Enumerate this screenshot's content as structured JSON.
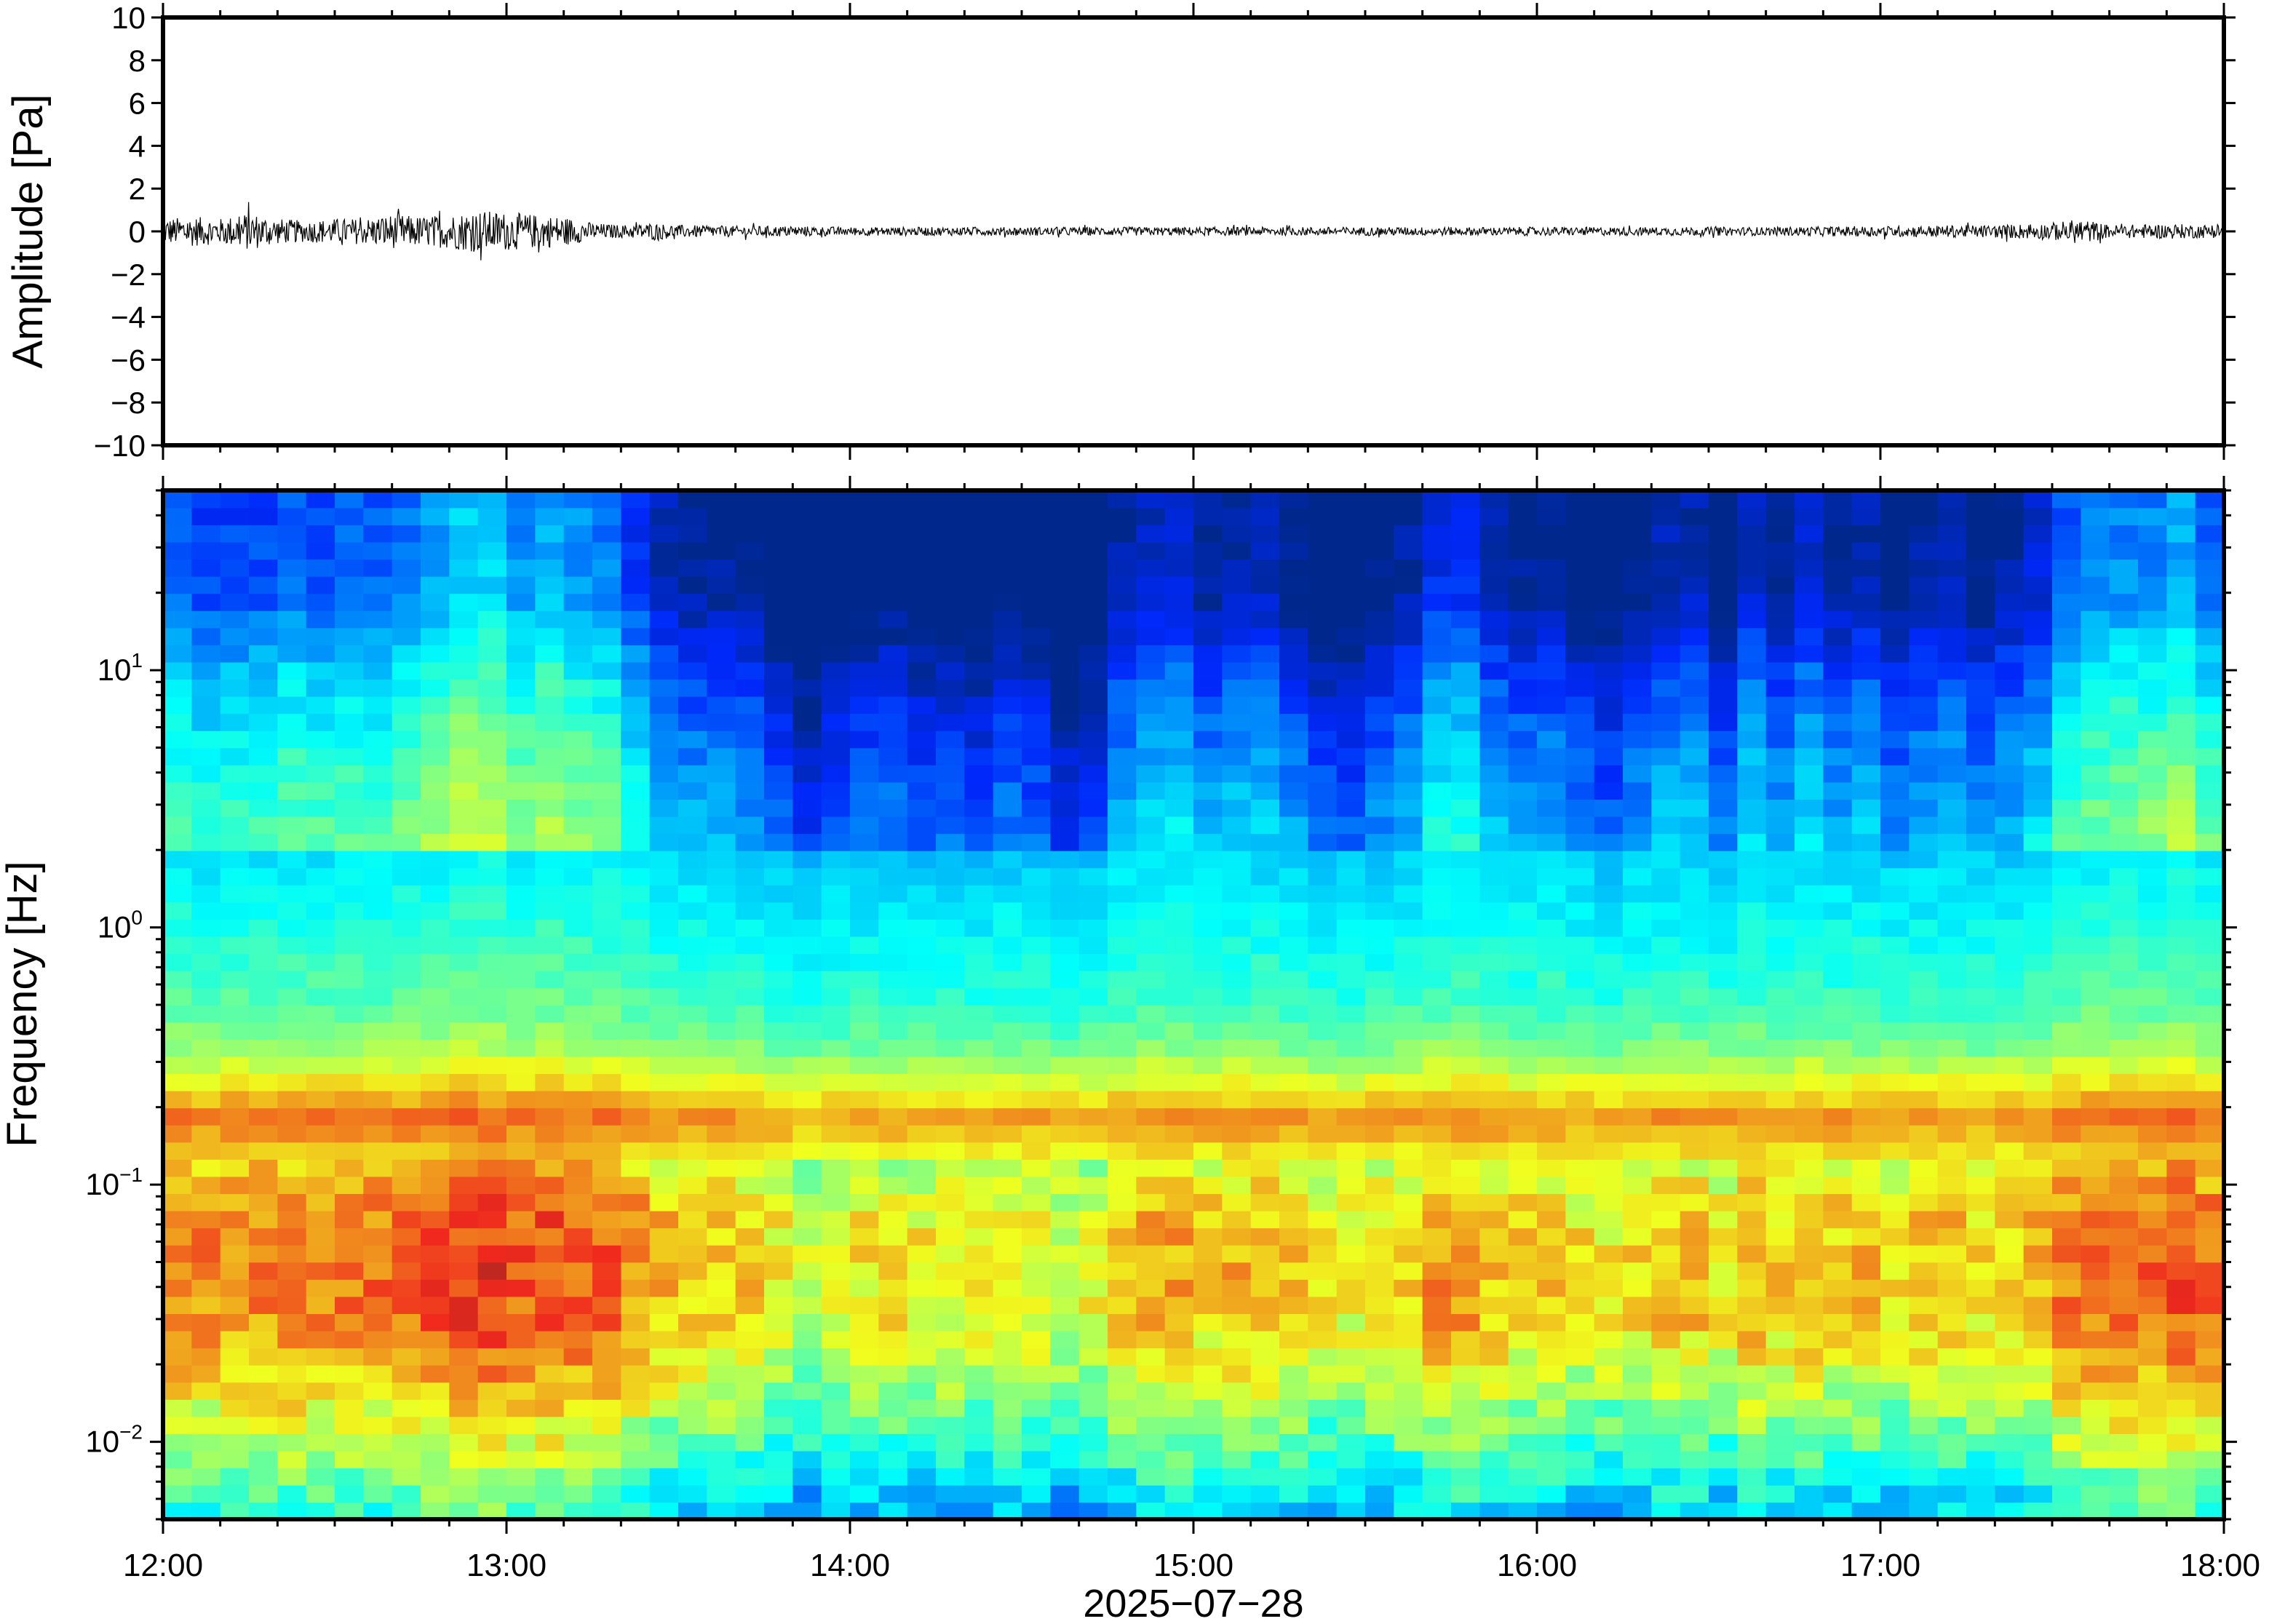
{
  "chart_data": [
    {
      "type": "line",
      "title": "",
      "xlabel": "",
      "ylabel": "Amplitude [Pa]",
      "ylim": [
        -10,
        10
      ],
      "yticks": [
        -10,
        -8,
        -6,
        -4,
        -2,
        0,
        2,
        4,
        6,
        8,
        10
      ],
      "ytick_labels": [
        "−10",
        "−8",
        "−6",
        "−4",
        "−2",
        "0",
        "2",
        "4",
        "6",
        "8",
        "10"
      ],
      "xlim": [
        "2025-07-28 12:00",
        "2025-07-28 18:00"
      ],
      "grid": false,
      "line_color": "#000000",
      "series": [
        {
          "name": "",
          "x": [
            "12:00",
            "12:05",
            "12:10",
            "12:15",
            "12:20",
            "12:25",
            "12:30",
            "12:35",
            "12:40",
            "12:45",
            "12:50",
            "12:55",
            "13:00",
            "13:05",
            "13:10",
            "13:15",
            "13:20",
            "13:25",
            "13:30",
            "13:40",
            "13:50",
            "14:00",
            "14:20",
            "14:40",
            "15:00",
            "15:20",
            "15:40",
            "16:00",
            "16:20",
            "16:40",
            "17:00",
            "17:20",
            "17:30",
            "17:35",
            "17:40",
            "17:50",
            "18:00"
          ],
          "envelope": [
            0.6,
            0.7,
            0.6,
            0.9,
            0.6,
            0.5,
            0.6,
            0.6,
            0.8,
            0.7,
            0.8,
            1.0,
            0.9,
            0.8,
            0.7,
            0.4,
            0.3,
            0.4,
            0.3,
            0.25,
            0.25,
            0.2,
            0.2,
            0.2,
            0.2,
            0.2,
            0.2,
            0.2,
            0.2,
            0.2,
            0.25,
            0.3,
            0.4,
            0.6,
            0.3,
            0.35,
            0.3
          ]
        }
      ]
    },
    {
      "type": "heatmap",
      "title": "",
      "xlabel": "2025−07−28",
      "ylabel": "Frequency [Hz]",
      "y_scale": "log",
      "ylim": [
        0.005,
        50
      ],
      "ytick_values": [
        0.01,
        0.1,
        1,
        10
      ],
      "ytick_mantissa": [
        "10",
        "10",
        "10",
        "10"
      ],
      "ytick_exponents": [
        "−2",
        "−1",
        "0",
        "1"
      ],
      "xlim": [
        "2025-07-28 12:00",
        "2025-07-28 18:00"
      ],
      "xtick_labels": [
        "12:00",
        "13:00",
        "14:00",
        "15:00",
        "16:00",
        "17:00",
        "18:00"
      ],
      "colormap": "jet",
      "grid": false,
      "num_time_bins": 72,
      "num_freq_bins": 60,
      "profile_power": {
        "freqs": [
          0.005,
          0.007,
          0.01,
          0.015,
          0.02,
          0.03,
          0.05,
          0.08,
          0.12,
          0.18,
          0.25,
          0.35,
          0.5,
          1.0,
          2.0,
          5.0,
          10,
          20,
          50
        ],
        "level": [
          0.34,
          0.4,
          0.5,
          0.58,
          0.64,
          0.7,
          0.72,
          0.7,
          0.62,
          0.76,
          0.62,
          0.5,
          0.44,
          0.38,
          0.32,
          0.24,
          0.16,
          0.04,
          0.02
        ]
      },
      "activity_by_time": {
        "hours": [
          12.0,
          12.5,
          12.9,
          13.1,
          13.25,
          13.4,
          13.6,
          13.9,
          14.3,
          14.7,
          14.8,
          15.1,
          15.5,
          15.7,
          16.2,
          16.5,
          16.8,
          17.0,
          17.3,
          17.6,
          17.8,
          18.0
        ],
        "level": [
          0.7,
          0.75,
          0.9,
          0.95,
          0.8,
          0.55,
          0.4,
          0.2,
          0.25,
          0.2,
          0.5,
          0.45,
          0.3,
          0.55,
          0.35,
          0.4,
          0.45,
          0.4,
          0.35,
          0.7,
          0.85,
          0.75
        ]
      }
    }
  ]
}
